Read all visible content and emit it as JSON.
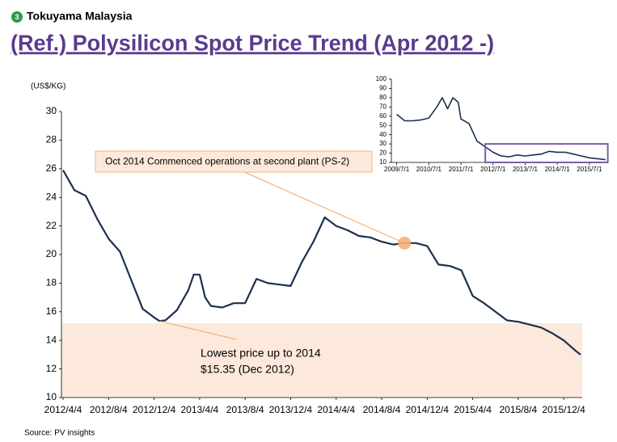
{
  "header": {
    "badge": "3",
    "company": "Tokuyama Malaysia",
    "title": "(Ref.) Polysilicon Spot Price Trend (Apr 2012 -)"
  },
  "source": "Source: PV insights",
  "chart_data": [
    {
      "type": "line",
      "y_axis_label": "(US$/KG)",
      "color": "#1b3050",
      "x": [
        "2012/4/4",
        "2012/5/4",
        "2012/6/4",
        "2012/7/4",
        "2012/8/4",
        "2012/9/4",
        "2012/10/4",
        "2012/11/4",
        "2012/12/4",
        "2012/12/19",
        "2013/1/4",
        "2013/2/4",
        "2013/3/4",
        "2013/3/19",
        "2013/4/4",
        "2013/4/19",
        "2013/5/4",
        "2013/6/4",
        "2013/7/4",
        "2013/8/4",
        "2013/9/4",
        "2013/10/4",
        "2013/11/4",
        "2013/12/4",
        "2014/1/4",
        "2014/2/4",
        "2014/3/4",
        "2014/4/4",
        "2014/5/4",
        "2014/6/4",
        "2014/7/4",
        "2014/8/4",
        "2014/9/4",
        "2014/10/4",
        "2014/11/4",
        "2014/12/4",
        "2015/1/4",
        "2015/2/4",
        "2015/3/4",
        "2015/4/4",
        "2015/5/4",
        "2015/6/4",
        "2015/7/4",
        "2015/8/4",
        "2015/9/4",
        "2015/10/4",
        "2015/11/4",
        "2015/12/4",
        "2016/1/4",
        "2016/1/19"
      ],
      "values": [
        25.9,
        24.5,
        24.1,
        22.5,
        21.1,
        20.2,
        18.2,
        16.2,
        15.6,
        15.35,
        15.4,
        16.1,
        17.5,
        18.6,
        18.6,
        17.0,
        16.4,
        16.3,
        16.6,
        16.6,
        18.3,
        18.0,
        17.9,
        17.8,
        19.5,
        20.9,
        22.6,
        22.0,
        21.7,
        21.3,
        21.2,
        20.9,
        20.7,
        20.8,
        20.8,
        20.6,
        19.3,
        19.2,
        18.9,
        17.1,
        16.6,
        16.0,
        15.4,
        15.3,
        15.1,
        14.9,
        14.5,
        14.0,
        13.3,
        13.0
      ],
      "xlim": [
        "2012/4/4",
        "2016/1/19"
      ],
      "xticks": [
        "2012/4/4",
        "2012/8/4",
        "2012/12/4",
        "2013/4/4",
        "2013/8/4",
        "2013/12/4",
        "2014/4/4",
        "2014/8/4",
        "2014/12/4",
        "2015/4/4",
        "2015/8/4",
        "2015/12/4"
      ],
      "ylim": [
        10,
        30
      ],
      "yticks": [
        10,
        12,
        14,
        16,
        18,
        20,
        22,
        24,
        26,
        28,
        30
      ],
      "highlight_ylim": [
        10,
        15.2
      ],
      "annotations": [
        {
          "text": "Oct 2014 Commenced operations at second plant (PS-2)",
          "x": "2014/10/4",
          "y": 20.8
        },
        {
          "text": [
            "Lowest price up to 2014",
            "$15.35 (Dec 2012)"
          ],
          "x": "2012/12/19",
          "y": 15.35
        }
      ]
    },
    {
      "type": "line",
      "color": "#1b3050",
      "x": [
        "2009/7/1",
        "2009/10/1",
        "2010/1/1",
        "2010/4/1",
        "2010/7/1",
        "2010/10/1",
        "2010/12/1",
        "2011/2/1",
        "2011/4/1",
        "2011/6/1",
        "2011/7/1",
        "2011/10/1",
        "2012/1/1",
        "2012/4/1",
        "2012/7/1",
        "2012/10/1",
        "2013/1/1",
        "2013/4/1",
        "2013/7/1",
        "2013/10/1",
        "2014/1/1",
        "2014/4/1",
        "2014/7/1",
        "2014/10/1",
        "2015/1/1",
        "2015/4/1",
        "2015/7/1",
        "2015/10/1",
        "2016/1/1"
      ],
      "values": [
        62,
        55,
        55,
        56,
        58,
        70,
        80,
        68,
        80,
        75,
        57,
        52,
        33,
        27,
        21,
        17,
        16,
        18,
        17,
        18,
        19,
        22,
        21,
        21,
        19,
        17,
        15,
        14,
        13
      ],
      "xlim": [
        "2009/5/1",
        "2016/2/1"
      ],
      "xticks": [
        "2009/7/1",
        "2010/7/1",
        "2011/7/1",
        "2012/7/1",
        "2013/7/1",
        "2014/7/1",
        "2015/7/1"
      ],
      "ylim": [
        10,
        100
      ],
      "yticks": [
        10,
        20,
        30,
        40,
        50,
        60,
        70,
        80,
        90,
        100
      ]
    }
  ]
}
